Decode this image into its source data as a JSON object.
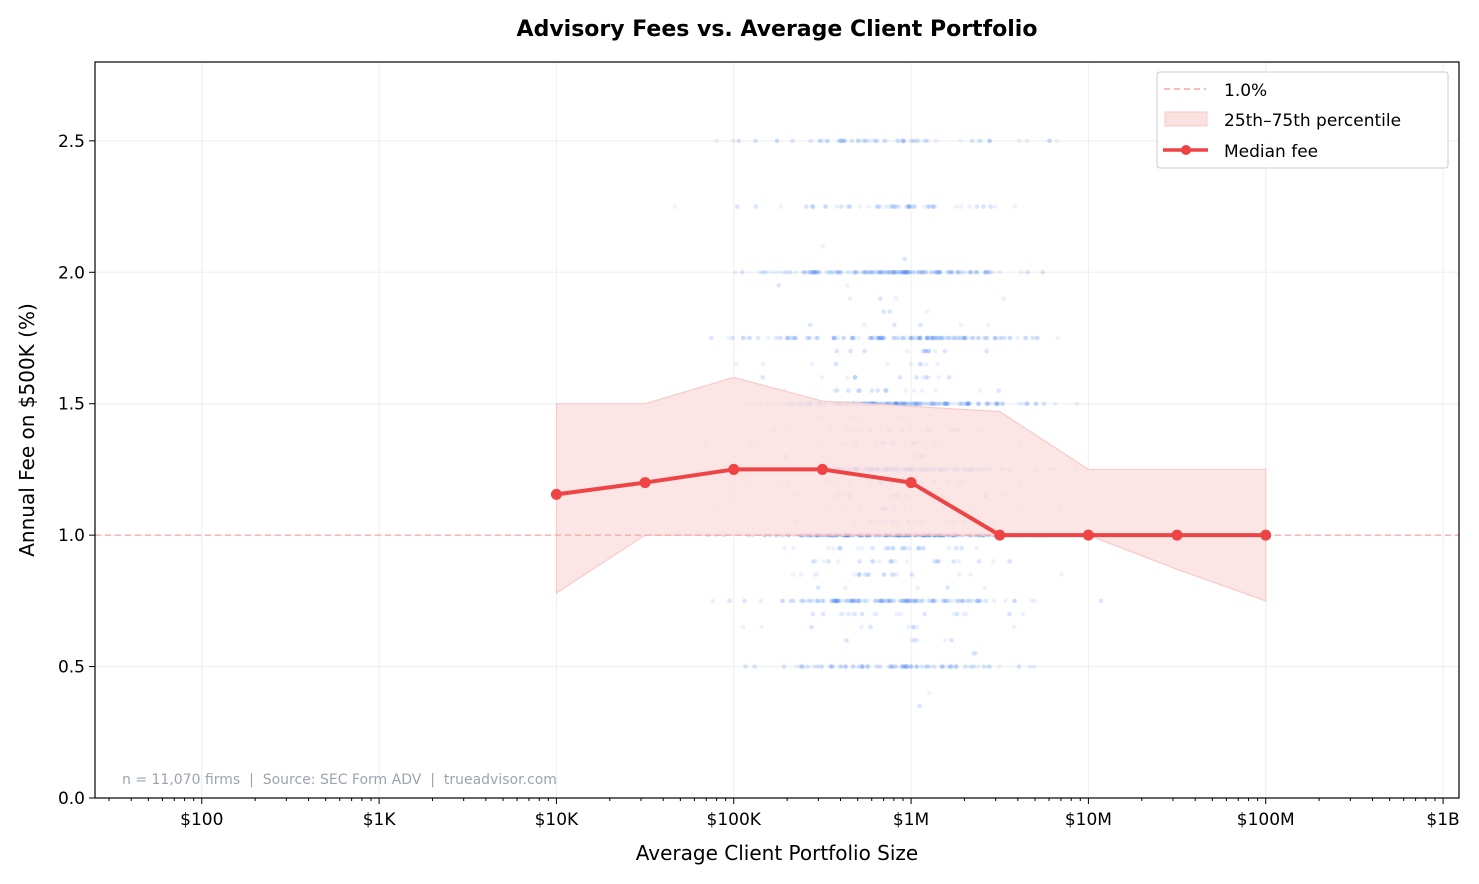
{
  "chart_data": {
    "type": "line",
    "title": "Advisory Fees vs. Average Client Portfolio",
    "xlabel": "Average Client Portfolio Size",
    "ylabel": "Annual Fee on $500K (%)",
    "x_scale": "log",
    "xlim": [
      25,
      1230000000
    ],
    "ylim": [
      0,
      2.8
    ],
    "grid": true,
    "legend_position": "top-right",
    "x_ticks": [
      {
        "value": 100,
        "label": "$100"
      },
      {
        "value": 1000,
        "label": "$1K"
      },
      {
        "value": 10000,
        "label": "$10K"
      },
      {
        "value": 100000,
        "label": "$100K"
      },
      {
        "value": 1000000,
        "label": "$1M"
      },
      {
        "value": 10000000,
        "label": "$10M"
      },
      {
        "value": 100000000,
        "label": "$100M"
      },
      {
        "value": 1000000000,
        "label": "$1B"
      }
    ],
    "y_ticks": [
      {
        "value": 0,
        "label": "0.0"
      },
      {
        "value": 0.5,
        "label": "0.5"
      },
      {
        "value": 1.0,
        "label": "1.0"
      },
      {
        "value": 1.5,
        "label": "1.5"
      },
      {
        "value": 2.0,
        "label": "2.0"
      },
      {
        "value": 2.5,
        "label": "2.5"
      }
    ],
    "x": [
      10000,
      31623,
      100000,
      316228,
      1000000,
      3162278,
      10000000,
      31622777,
      100000000
    ],
    "series": [
      {
        "name": "Median fee",
        "kind": "line",
        "color": "#ef4444",
        "values": [
          1.155,
          1.2,
          1.25,
          1.25,
          1.2,
          1.0,
          1.0,
          1.0,
          1.0
        ]
      },
      {
        "name": "25th–75th percentile",
        "kind": "band",
        "color": "#f8caca",
        "lower": [
          0.78,
          1.0,
          1.0,
          1.0,
          1.0,
          1.0,
          1.0,
          0.87,
          0.75
        ],
        "upper": [
          1.5,
          1.5,
          1.6,
          1.51,
          1.49,
          1.47,
          1.25,
          1.25,
          1.25
        ]
      }
    ],
    "reference_line": {
      "name": "1.0%",
      "y": 1.0,
      "color": "#f4a3a3",
      "style": "dashed"
    },
    "scatter": {
      "description_color": "#3b82f6",
      "common_fee_levels": [
        0.5,
        0.75,
        1.0,
        1.25,
        1.5,
        1.75,
        2.0,
        2.25,
        2.5
      ]
    },
    "annotation": "n = 11,070 firms  |  Source: SEC Form ADV  |  trueadvisor.com"
  }
}
